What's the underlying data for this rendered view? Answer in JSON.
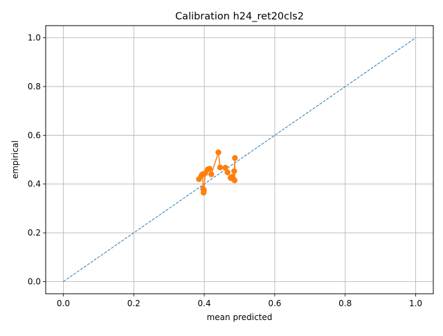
{
  "chart_data": {
    "type": "line",
    "title": "Calibration h24_ret20cls2",
    "xlabel": "mean predicted",
    "ylabel": "empirical",
    "xlim": [
      -0.05,
      1.05
    ],
    "ylim": [
      -0.05,
      1.05
    ],
    "grid": true,
    "x_ticks": [
      0.0,
      0.2,
      0.4,
      0.6,
      0.8,
      1.0
    ],
    "y_ticks": [
      0.0,
      0.2,
      0.4,
      0.6,
      0.8,
      1.0
    ],
    "x_tick_labels": [
      "0.0",
      "0.2",
      "0.4",
      "0.6",
      "0.8",
      "1.0"
    ],
    "y_tick_labels": [
      "0.0",
      "0.2",
      "0.4",
      "0.6",
      "0.8",
      "1.0"
    ],
    "series": [
      {
        "style": "dashed",
        "color": "#1f77b4",
        "x": [
          0.0,
          1.0
        ],
        "y": [
          0.0,
          1.0
        ]
      },
      {
        "style": "line-with-markers",
        "color": "#ff7f0e",
        "x": [
          0.385,
          0.392,
          0.395,
          0.397,
          0.398,
          0.399,
          0.403,
          0.41,
          0.415,
          0.42,
          0.44,
          0.445,
          0.46,
          0.466,
          0.475,
          0.48,
          0.483,
          0.485,
          0.487,
          0.486
        ],
        "y": [
          0.42,
          0.435,
          0.44,
          0.38,
          0.365,
          0.375,
          0.445,
          0.46,
          0.463,
          0.44,
          0.53,
          0.468,
          0.467,
          0.448,
          0.425,
          0.43,
          0.42,
          0.453,
          0.507,
          0.415
        ]
      }
    ]
  }
}
